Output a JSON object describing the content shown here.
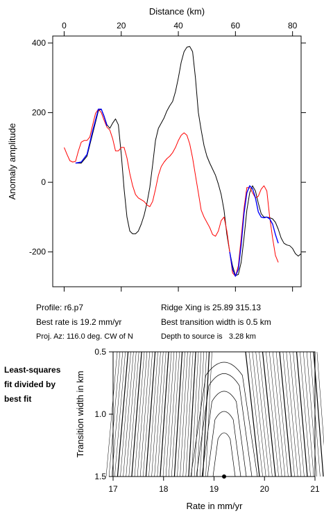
{
  "top_chart": {
    "x_axis_label": "Distance (km)",
    "y_axis_label": "Anomaly amplitude",
    "x_ticks": [
      "0",
      "20",
      "40",
      "60",
      "80"
    ],
    "y_ticks": [
      "400",
      "200",
      "0",
      "-200"
    ]
  },
  "info": {
    "profile": "Profile: r6.p7",
    "best_rate": "Best rate is 19.2 mm/yr",
    "proj_az": "Proj. Az: 116.0 deg. CW of N",
    "ridge_xing": "Ridge Xing is 25.89 315.13",
    "best_width": "Best transition width is 0.5 km",
    "depth": "Depth to source is   3.28 km"
  },
  "side_label": {
    "line1": "Least-squares",
    "line2": "fit divided by",
    "line3": "best fit"
  },
  "bottom_chart": {
    "x_axis_label": "Rate in mm/yr",
    "y_axis_label": "Transition width in km",
    "x_ticks": [
      "17",
      "18",
      "19",
      "20",
      "21"
    ],
    "y_ticks": [
      "1.5",
      "1.0",
      "0.5"
    ]
  },
  "colors": {
    "observed": "#000000",
    "model": "#ff0000",
    "fit_segment": "#0000ff"
  },
  "chart_data": [
    {
      "type": "line",
      "title": "",
      "xlabel": "Distance (km)",
      "ylabel": "Anomaly amplitude",
      "xlim": [
        -4,
        83
      ],
      "ylim": [
        -300,
        420
      ],
      "x_ticks": [
        0,
        20,
        40,
        60,
        80
      ],
      "y_ticks": [
        400,
        200,
        0,
        -200
      ],
      "grid": false,
      "legend": "none",
      "series": [
        {
          "color": "#000000",
          "points": [
            [
              4,
              55
            ],
            [
              6,
              55
            ],
            [
              8,
              75
            ],
            [
              10,
              140
            ],
            [
              12,
              205
            ],
            [
              13,
              210
            ],
            [
              14,
              190
            ],
            [
              15,
              165
            ],
            [
              16,
              155
            ],
            [
              17,
              170
            ],
            [
              18,
              182
            ],
            [
              19,
              165
            ],
            [
              20,
              80
            ],
            [
              21,
              -20
            ],
            [
              22,
              -100
            ],
            [
              23,
              -140
            ],
            [
              24,
              -148
            ],
            [
              25,
              -148
            ],
            [
              26,
              -140
            ],
            [
              27,
              -120
            ],
            [
              28,
              -95
            ],
            [
              29,
              -60
            ],
            [
              30,
              -15
            ],
            [
              31,
              50
            ],
            [
              32,
              120
            ],
            [
              33,
              155
            ],
            [
              34,
              170
            ],
            [
              35,
              185
            ],
            [
              36,
              205
            ],
            [
              37,
              220
            ],
            [
              38,
              232
            ],
            [
              39,
              260
            ],
            [
              40,
              300
            ],
            [
              41,
              345
            ],
            [
              42,
              375
            ],
            [
              43,
              388
            ],
            [
              44,
              390
            ],
            [
              45,
              375
            ],
            [
              46,
              300
            ],
            [
              47,
              200
            ],
            [
              48,
              150
            ],
            [
              49,
              105
            ],
            [
              50,
              75
            ],
            [
              51,
              55
            ],
            [
              52,
              38
            ],
            [
              53,
              20
            ],
            [
              54,
              -5
            ],
            [
              55,
              -35
            ],
            [
              56,
              -80
            ],
            [
              57,
              -150
            ],
            [
              58,
              -200
            ],
            [
              59,
              -240
            ],
            [
              60,
              -268
            ],
            [
              61,
              -265
            ],
            [
              62,
              -230
            ],
            [
              63,
              -160
            ],
            [
              64,
              -80
            ],
            [
              65,
              -30
            ],
            [
              66,
              -10
            ],
            [
              67,
              -25
            ],
            [
              68,
              -60
            ],
            [
              69,
              -90
            ],
            [
              70,
              -100
            ],
            [
              71,
              -100
            ],
            [
              72,
              -102
            ],
            [
              73,
              -105
            ],
            [
              74,
              -115
            ],
            [
              75,
              -135
            ],
            [
              76,
              -160
            ],
            [
              77,
              -175
            ],
            [
              78,
              -180
            ],
            [
              79,
              -182
            ],
            [
              80,
              -190
            ],
            [
              81,
              -205
            ],
            [
              82,
              -212
            ],
            [
              83,
              -205
            ]
          ]
        },
        {
          "color": "#ff0000",
          "points": [
            [
              0,
              100
            ],
            [
              1,
              80
            ],
            [
              2,
              62
            ],
            [
              3,
              58
            ],
            [
              4,
              60
            ],
            [
              5,
              90
            ],
            [
              6,
              115
            ],
            [
              7,
              120
            ],
            [
              8,
              120
            ],
            [
              9,
              130
            ],
            [
              10,
              165
            ],
            [
              11,
              198
            ],
            [
              12,
              210
            ],
            [
              13,
              200
            ],
            [
              14,
              178
            ],
            [
              15,
              158
            ],
            [
              16,
              150
            ],
            [
              17,
              125
            ],
            [
              18,
              90
            ],
            [
              19,
              90
            ],
            [
              20,
              100
            ],
            [
              21,
              100
            ],
            [
              22,
              70
            ],
            [
              23,
              25
            ],
            [
              24,
              -10
            ],
            [
              25,
              -35
            ],
            [
              26,
              -45
            ],
            [
              27,
              -50
            ],
            [
              28,
              -55
            ],
            [
              29,
              -65
            ],
            [
              30,
              -70
            ],
            [
              31,
              -55
            ],
            [
              32,
              -20
            ],
            [
              33,
              20
            ],
            [
              34,
              45
            ],
            [
              35,
              58
            ],
            [
              36,
              68
            ],
            [
              37,
              75
            ],
            [
              38,
              85
            ],
            [
              39,
              100
            ],
            [
              40,
              120
            ],
            [
              41,
              135
            ],
            [
              42,
              142
            ],
            [
              43,
              135
            ],
            [
              44,
              110
            ],
            [
              45,
              70
            ],
            [
              46,
              20
            ],
            [
              47,
              -30
            ],
            [
              48,
              -80
            ],
            [
              49,
              -100
            ],
            [
              50,
              -115
            ],
            [
              51,
              -130
            ],
            [
              52,
              -150
            ],
            [
              53,
              -155
            ],
            [
              54,
              -140
            ],
            [
              55,
              -110
            ],
            [
              56,
              -100
            ],
            [
              57,
              -140
            ],
            [
              58,
              -200
            ],
            [
              59,
              -260
            ],
            [
              60,
              -270
            ],
            [
              61,
              -240
            ],
            [
              62,
              -160
            ],
            [
              63,
              -75
            ],
            [
              64,
              -15
            ],
            [
              65,
              -15
            ],
            [
              66,
              -30
            ],
            [
              67,
              -45
            ],
            [
              68,
              -40
            ],
            [
              69,
              -20
            ],
            [
              70,
              -10
            ],
            [
              71,
              -25
            ],
            [
              72,
              -100
            ],
            [
              73,
              -160
            ],
            [
              74,
              -210
            ],
            [
              75,
              -230
            ]
          ]
        },
        {
          "color": "#0000ff",
          "points": [
            [
              4,
              55
            ],
            [
              6,
              58
            ],
            [
              8,
              80
            ],
            [
              10,
              148
            ],
            [
              12,
              210
            ],
            [
              13,
              210
            ],
            [
              14,
              188
            ],
            [
              15,
              162
            ]
          ]
        },
        {
          "color": "#0000ff",
          "points": [
            [
              58,
              -200
            ],
            [
              59,
              -250
            ],
            [
              60,
              -270
            ],
            [
              61,
              -250
            ],
            [
              62,
              -180
            ],
            [
              63,
              -90
            ],
            [
              64,
              -30
            ],
            [
              65,
              -10
            ],
            [
              66,
              -18
            ],
            [
              67,
              -45
            ],
            [
              68,
              -85
            ],
            [
              69,
              -100
            ],
            [
              70,
              -102
            ],
            [
              71,
              -100
            ],
            [
              72,
              -105
            ],
            [
              73,
              -120
            ],
            [
              74,
              -150
            ],
            [
              75,
              -175
            ]
          ]
        }
      ]
    },
    {
      "type": "contour",
      "title": "",
      "xlabel": "Rate in mm/yr",
      "ylabel": "Transition width in km",
      "xlim": [
        17,
        21
      ],
      "ylim": [
        0.5,
        1.5
      ],
      "x_ticks": [
        17,
        18,
        19,
        20,
        21
      ],
      "y_ticks": [
        0.5,
        1.0,
        1.5
      ],
      "grid": false,
      "legend": "none",
      "best_fit_point": [
        19.2,
        0.5
      ],
      "best_rate": 19.2
    }
  ]
}
